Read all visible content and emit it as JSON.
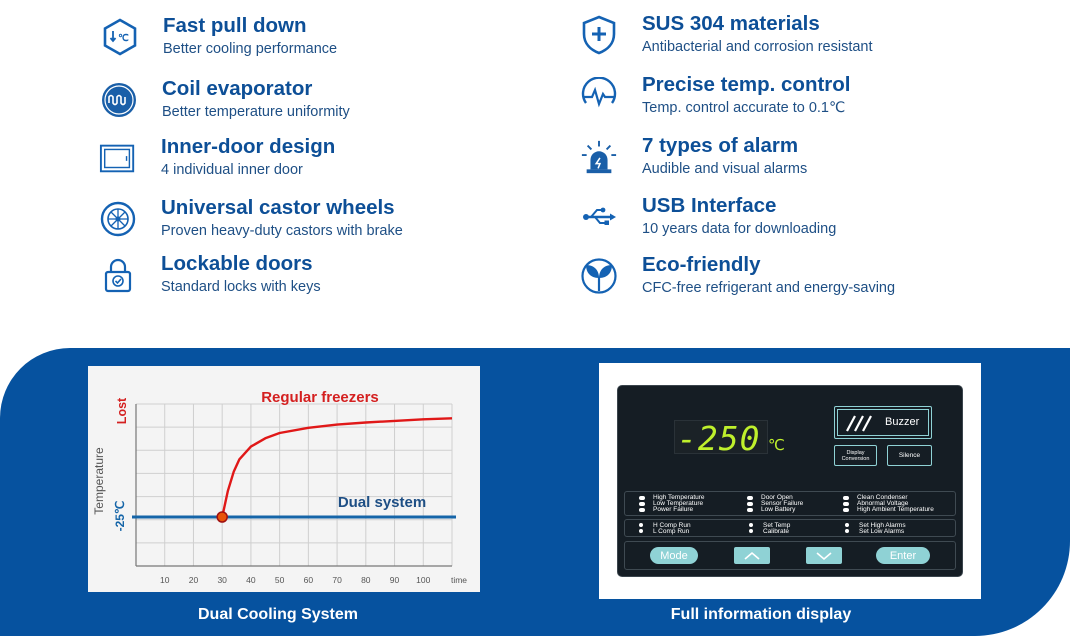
{
  "features_left": [
    {
      "title": "Fast pull down",
      "subtitle": "Better cooling performance",
      "icon": "fast-pull-down-icon"
    },
    {
      "title": "Coil evaporator",
      "subtitle": "Better temperature uniformity",
      "icon": "coil-evaporator-icon"
    },
    {
      "title": "Inner-door design",
      "subtitle": "4 individual inner door",
      "icon": "inner-door-icon"
    },
    {
      "title": "Universal castor wheels",
      "subtitle": "Proven heavy-duty castors with brake",
      "icon": "castor-wheel-icon"
    },
    {
      "title": "Lockable doors",
      "subtitle": "Standard locks with keys",
      "icon": "lock-icon"
    }
  ],
  "features_right": [
    {
      "title": "SUS 304 materials",
      "subtitle": "Antibacterial and corrosion resistant",
      "icon": "shield-plus-icon"
    },
    {
      "title": "Precise temp. control",
      "subtitle": "Temp. control  accurate to 0.1℃",
      "icon": "pulse-icon"
    },
    {
      "title": "7 types of alarm",
      "subtitle": "Audible and visual alarms",
      "icon": "alarm-light-icon"
    },
    {
      "title": "USB Interface",
      "subtitle": "10 years data for downloading",
      "icon": "usb-icon"
    },
    {
      "title": "Eco-friendly",
      "subtitle": "CFC-free refrigerant and energy-saving",
      "icon": "leaf-icon"
    }
  ],
  "icon_labels": {
    "fast_pull_down": "℃"
  },
  "captions": {
    "chart": "Dual Cooling System",
    "display": "Full information display"
  },
  "chart_data": {
    "type": "line",
    "x_ticks": [
      "10",
      "20",
      "30",
      "40",
      "50",
      "60",
      "70",
      "80",
      "90",
      "100"
    ],
    "xlabel": "time",
    "ylabel": "Temperature",
    "y_top_label": "Lost",
    "y_mark_label": "-25℃",
    "xlim": [
      0,
      110
    ],
    "grid": true,
    "series": [
      {
        "name": "Regular freezers",
        "color": "#e01818",
        "x": [
          30,
          32,
          34,
          36,
          40,
          45,
          50,
          60,
          70,
          80,
          90,
          100,
          110
        ],
        "y": [
          0,
          25,
          43,
          55,
          67,
          75,
          80,
          85,
          88,
          90,
          91.5,
          93,
          94
        ]
      },
      {
        "name": "Dual system",
        "color": "#1565a8",
        "x": [
          0,
          110
        ],
        "y": [
          0,
          0
        ]
      }
    ],
    "marker": {
      "x": 30,
      "y": 0,
      "color": "#e8540a"
    }
  },
  "display": {
    "temperature": "-250",
    "unit": "℃",
    "buzzer_label": "Buzzer",
    "buzzer_icon": "buzzer-lines-icon",
    "display_conversion_label": "Display Conversion",
    "silence_label": "Silence",
    "indicators_col1": [
      "High Temperature",
      "Low Temperature",
      "Power Failure"
    ],
    "indicators_col2": [
      "Door Open",
      "Sensor Failure",
      "Low Battery"
    ],
    "indicators_col3": [
      "Clean Condenser",
      "Abnormal Voltage",
      "High Ambient Temperature"
    ],
    "comp_col1": [
      "H Comp Run",
      "L Comp Run"
    ],
    "comp_col2": [
      "Set Temp",
      "Calibrate"
    ],
    "comp_col3": [
      "Set High Alarms",
      "Set Low Alarms"
    ],
    "mode_label": "Mode",
    "enter_label": "Enter",
    "colors": {
      "lcd": "#bff02c",
      "panel": "#151d24",
      "key": "#8fd2d5"
    }
  },
  "colors": {
    "brand_blue": "#06529f",
    "title_blue": "#0d4f97",
    "text_blue": "#1e4f85"
  }
}
